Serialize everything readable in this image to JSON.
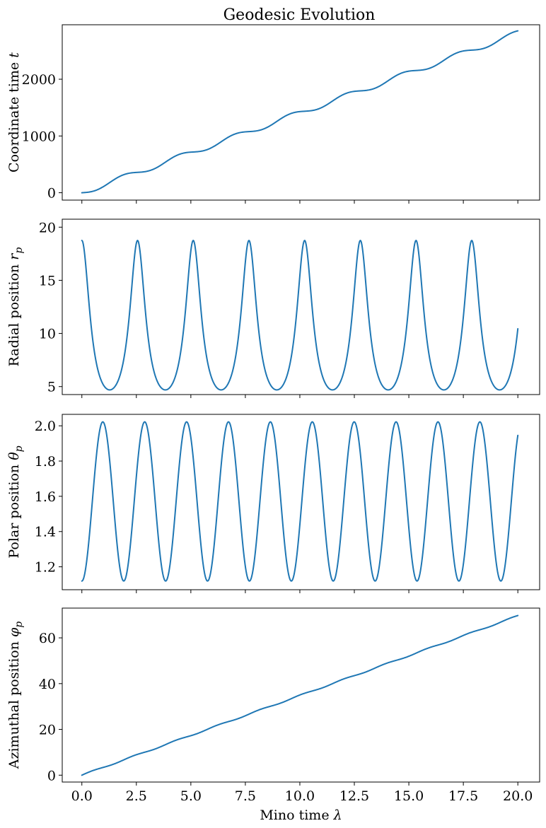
{
  "figure": {
    "title": "Geodesic Evolution"
  },
  "chart_data": [
    {
      "type": "line",
      "title": "Geodesic Evolution",
      "xlabel": "",
      "ylabel": "Coordinate time t",
      "ylabel_base": "Coordinate time ",
      "ylabel_sym": "t",
      "ylabel_sub": "",
      "xlim": [
        -0.9,
        21.0
      ],
      "ylim": [
        -130,
        2960
      ],
      "xticks": [
        0,
        2.5,
        5,
        7.5,
        10,
        12.5,
        15,
        17.5,
        20
      ],
      "xtick_labels": [],
      "yticks": [
        0,
        1000,
        2000
      ],
      "ytick_labels": [
        "0",
        "1000",
        "2000"
      ],
      "grid": false,
      "series": [
        {
          "color": "#1f77b4",
          "function": "coordinate_time",
          "x_range": [
            0,
            20
          ],
          "params": {
            "drift": 140.5,
            "amplitude": 48,
            "period": 2.555,
            "phase": 0
          }
        }
      ]
    },
    {
      "type": "line",
      "xlabel": "",
      "ylabel": "Radial position r_p",
      "ylabel_base": "Radial position ",
      "ylabel_sym": "r",
      "ylabel_sub": "p",
      "xlim": [
        -0.9,
        21.0
      ],
      "ylim": [
        4.25,
        20.75
      ],
      "xticks": [
        0,
        2.5,
        5,
        7.5,
        10,
        12.5,
        15,
        17.5,
        20
      ],
      "xtick_labels": [],
      "yticks": [
        5,
        10,
        15,
        20
      ],
      "ytick_labels": [
        "5",
        "10",
        "15",
        "20"
      ],
      "grid": false,
      "series": [
        {
          "color": "#1f77b4",
          "function": "radial",
          "x_range": [
            0,
            20
          ],
          "params": {
            "semi_latus": 7.5,
            "eccentricity": 0.6,
            "period": 2.555,
            "phase": 0
          }
        }
      ]
    },
    {
      "type": "line",
      "xlabel": "",
      "ylabel": "Polar position θ_p",
      "ylabel_base": "Polar position ",
      "ylabel_sym": "θ",
      "ylabel_sub": "p",
      "xlim": [
        -0.9,
        21.0
      ],
      "ylim": [
        1.07,
        2.065
      ],
      "xticks": [
        0,
        2.5,
        5,
        7.5,
        10,
        12.5,
        15,
        17.5,
        20
      ],
      "xtick_labels": [],
      "yticks": [
        1.2,
        1.4,
        1.6,
        1.8,
        2.0
      ],
      "ytick_labels": [
        "1.2",
        "1.4",
        "1.6",
        "1.8",
        "2.0"
      ],
      "grid": false,
      "series": [
        {
          "color": "#1f77b4",
          "function": "polar",
          "x_range": [
            0,
            20
          ],
          "params": {
            "center": 1.5708,
            "amplitude": 0.4516,
            "period": 1.922,
            "phase": 0
          }
        }
      ]
    },
    {
      "type": "line",
      "xlabel": "Mino time λ",
      "xlabel_base": "Mino time ",
      "xlabel_sym": "λ",
      "ylabel": "Azimuthal position φ_p",
      "ylabel_base": "Azimuthal position ",
      "ylabel_sym": "φ",
      "ylabel_sub": "p",
      "xlim": [
        -0.9,
        21.0
      ],
      "ylim": [
        -3.0,
        73.0
      ],
      "xticks": [
        0,
        2.5,
        5,
        7.5,
        10,
        12.5,
        15,
        17.5,
        20
      ],
      "xtick_labels": [
        "0.0",
        "2.5",
        "5.0",
        "7.5",
        "10.0",
        "12.5",
        "15.0",
        "17.5",
        "20.0"
      ],
      "yticks": [
        0,
        20,
        40,
        60
      ],
      "ytick_labels": [
        "0",
        "20",
        "40",
        "60"
      ],
      "grid": false,
      "series": [
        {
          "color": "#1f77b4",
          "function": "azimuthal",
          "x_range": [
            0,
            20
          ],
          "params": {
            "slope": 3.48,
            "wobble": 0.25,
            "period": 1.922,
            "phase": 0
          }
        }
      ]
    }
  ]
}
